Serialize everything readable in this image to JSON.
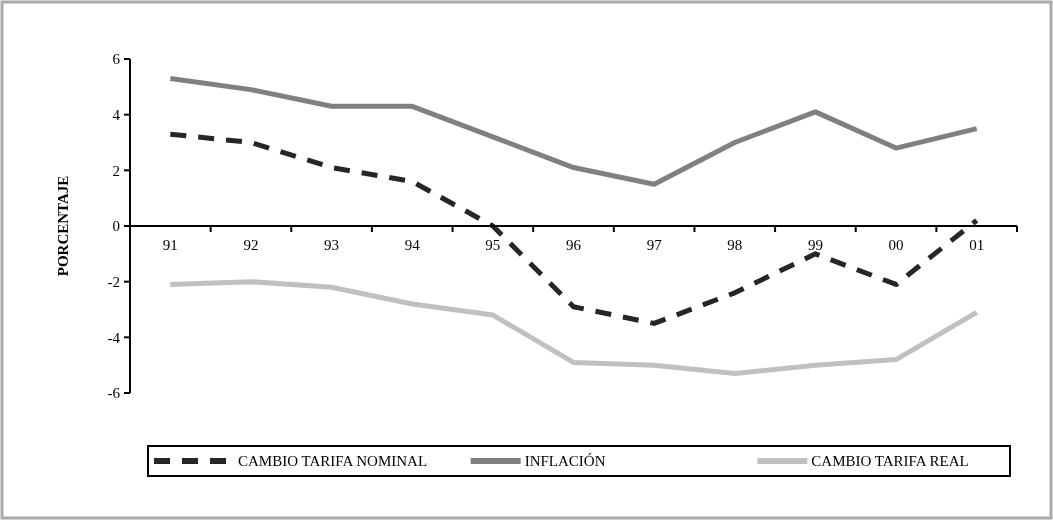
{
  "chart_data": {
    "type": "line",
    "ylabel": "PORCENTAJE",
    "categories": [
      "91",
      "92",
      "93",
      "94",
      "95",
      "96",
      "97",
      "98",
      "99",
      "00",
      "01"
    ],
    "ylim": [
      -6,
      6
    ],
    "yticks": [
      -6,
      -4,
      -2,
      0,
      2,
      4,
      6
    ],
    "legend": "bottom",
    "series": [
      {
        "name": "CAMBIO TARIFA NOMINAL",
        "color": "#262626",
        "line_style": "dashed",
        "values": [
          3.3,
          3.0,
          2.1,
          1.6,
          0,
          -2.9,
          -3.5,
          -2.4,
          -1.0,
          -2.1,
          0.2
        ]
      },
      {
        "name": "INFLACIÓN",
        "color": "#808080",
        "line_style": "solid",
        "values": [
          5.3,
          4.9,
          4.3,
          4.3,
          3.2,
          2.1,
          1.5,
          3.0,
          4.1,
          2.8,
          3.5
        ]
      },
      {
        "name": "CAMBIO TARIFA REAL",
        "color": "#c0c0c0",
        "line_style": "solid",
        "values": [
          -2.1,
          -2.0,
          -2.2,
          -2.8,
          -3.2,
          -4.9,
          -5.0,
          -5.3,
          -5.0,
          -4.8,
          -3.1
        ]
      }
    ]
  }
}
